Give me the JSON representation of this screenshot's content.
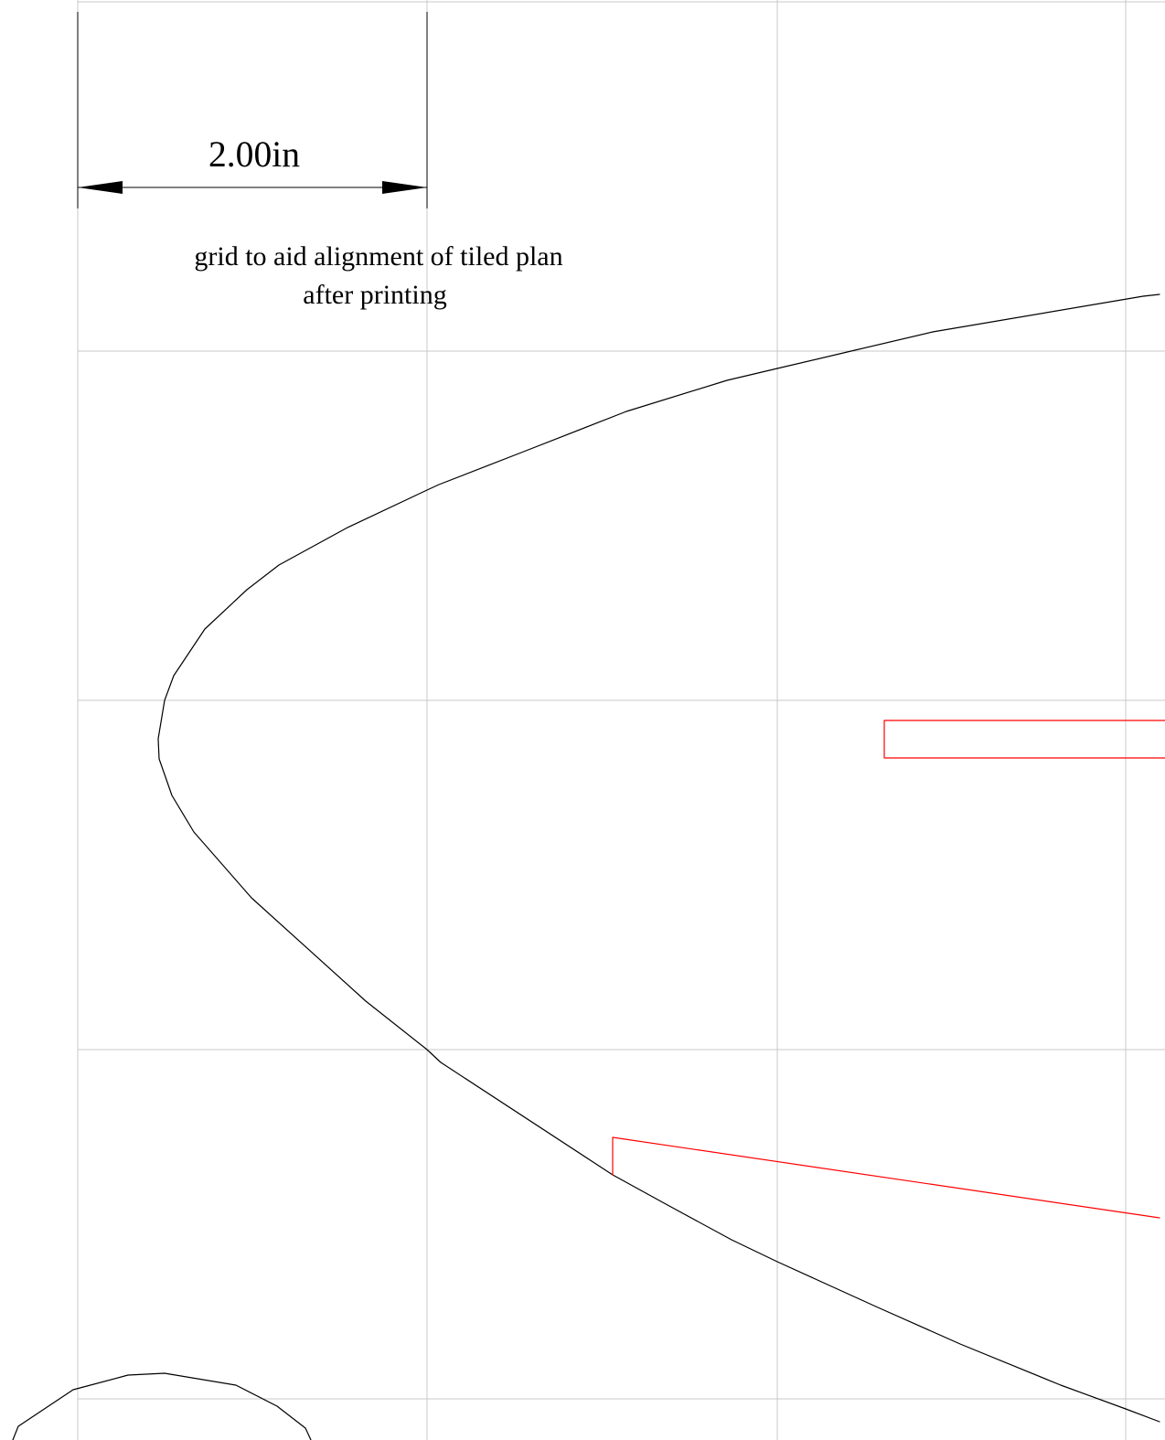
{
  "dimension": {
    "label": "2.00in"
  },
  "note": {
    "lines": [
      "grid to aid alignment of tiled plan",
      "after printing"
    ]
  },
  "colors": {
    "grid": "#c8c8c8",
    "outline": "#000000",
    "part": "#ff0000"
  }
}
